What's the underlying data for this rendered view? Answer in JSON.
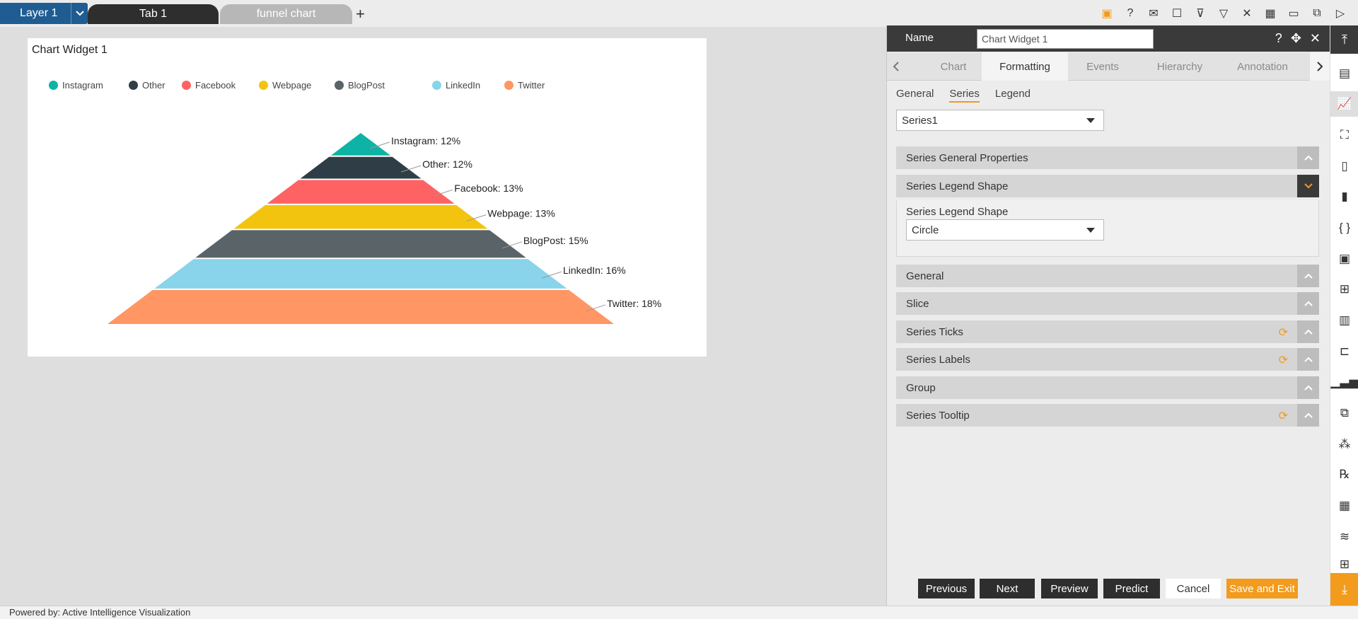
{
  "topbar": {
    "layer_label": "Layer 1",
    "tabs": [
      {
        "label": "Tab 1"
      },
      {
        "label": "funnel chart"
      }
    ],
    "add_tab": "+",
    "toolbar_icons": [
      "save-icon",
      "help-icon",
      "mail-icon",
      "comment-icon",
      "clear-filter-icon",
      "filter-icon",
      "tools-icon",
      "table-icon",
      "preview-icon",
      "devices-icon",
      "play-icon"
    ]
  },
  "widget": {
    "title": "Chart Widget 1"
  },
  "chart_data": {
    "type": "funnel",
    "series": [
      {
        "name": "Instagram",
        "value": 12,
        "label": "Instagram: 12%",
        "color": "#0db3a4"
      },
      {
        "name": "Other",
        "value": 12,
        "label": "Other: 12%",
        "color": "#2f3e46"
      },
      {
        "name": "Facebook",
        "value": 13,
        "label": "Facebook: 13%",
        "color": "#ff6262"
      },
      {
        "name": "Webpage",
        "value": 13,
        "label": "Webpage: 13%",
        "color": "#f2c40f"
      },
      {
        "name": "BlogPost",
        "value": 15,
        "label": "BlogPost: 15%",
        "color": "#5a6367"
      },
      {
        "name": "LinkedIn",
        "value": 16,
        "label": "LinkedIn: 16%",
        "color": "#89d4ea"
      },
      {
        "name": "Twitter",
        "value": 18,
        "label": "Twitter: 18%",
        "color": "#ff9663"
      }
    ],
    "legend_position": "top-left",
    "legend_shape": "circle"
  },
  "panel": {
    "name_label": "Name",
    "name_value": "Chart Widget 1",
    "main_tabs": [
      "Chart",
      "Formatting",
      "Events",
      "Hierarchy",
      "Annotation"
    ],
    "active_main_tab": "Formatting",
    "sub_tabs": [
      "General",
      "Series",
      "Legend"
    ],
    "active_sub_tab": "Series",
    "series_select": "Series1",
    "accordions": {
      "general_props": "Series General Properties",
      "legend_shape": "Series Legend Shape",
      "general": "General",
      "slice": "Slice",
      "ticks": "Series Ticks",
      "labels": "Series Labels",
      "group": "Group",
      "tooltip": "Series Tooltip"
    },
    "legend_shape_field_label": "Series Legend Shape",
    "legend_shape_value": "Circle",
    "buttons": {
      "previous": "Previous",
      "next": "Next",
      "preview": "Preview",
      "predict": "Predict",
      "cancel": "Cancel",
      "save_exit": "Save and Exit"
    }
  },
  "colors": {
    "accent": "#f29b1c",
    "layer_blue": "#1f5c91",
    "dark": "#3a3a3a"
  },
  "footer": {
    "text": "Powered by: Active Intelligence Visualization"
  }
}
